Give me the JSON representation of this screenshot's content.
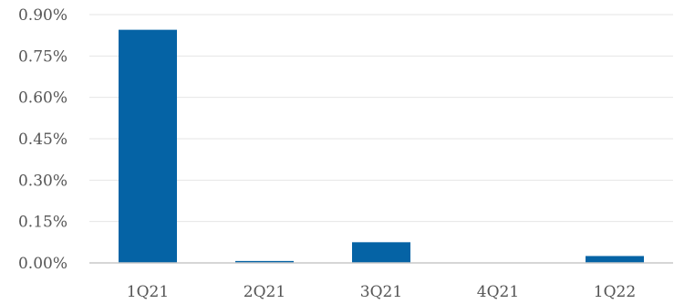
{
  "chart_data": {
    "type": "bar",
    "categories": [
      "1Q21",
      "2Q21",
      "3Q21",
      "4Q21",
      "1Q22"
    ],
    "values": [
      0.845,
      0.007,
      0.075,
      0.0,
      0.025
    ],
    "ylim": [
      0,
      0.9
    ],
    "yticks": [
      0.0,
      0.15,
      0.3,
      0.45,
      0.6,
      0.75,
      0.9
    ],
    "ytick_labels": [
      "0.00%",
      "0.15%",
      "0.30%",
      "0.45%",
      "0.60%",
      "0.75%",
      "0.90%"
    ],
    "grid": true,
    "bar_color": "#0563A5",
    "title": "",
    "xlabel": "",
    "ylabel": ""
  }
}
